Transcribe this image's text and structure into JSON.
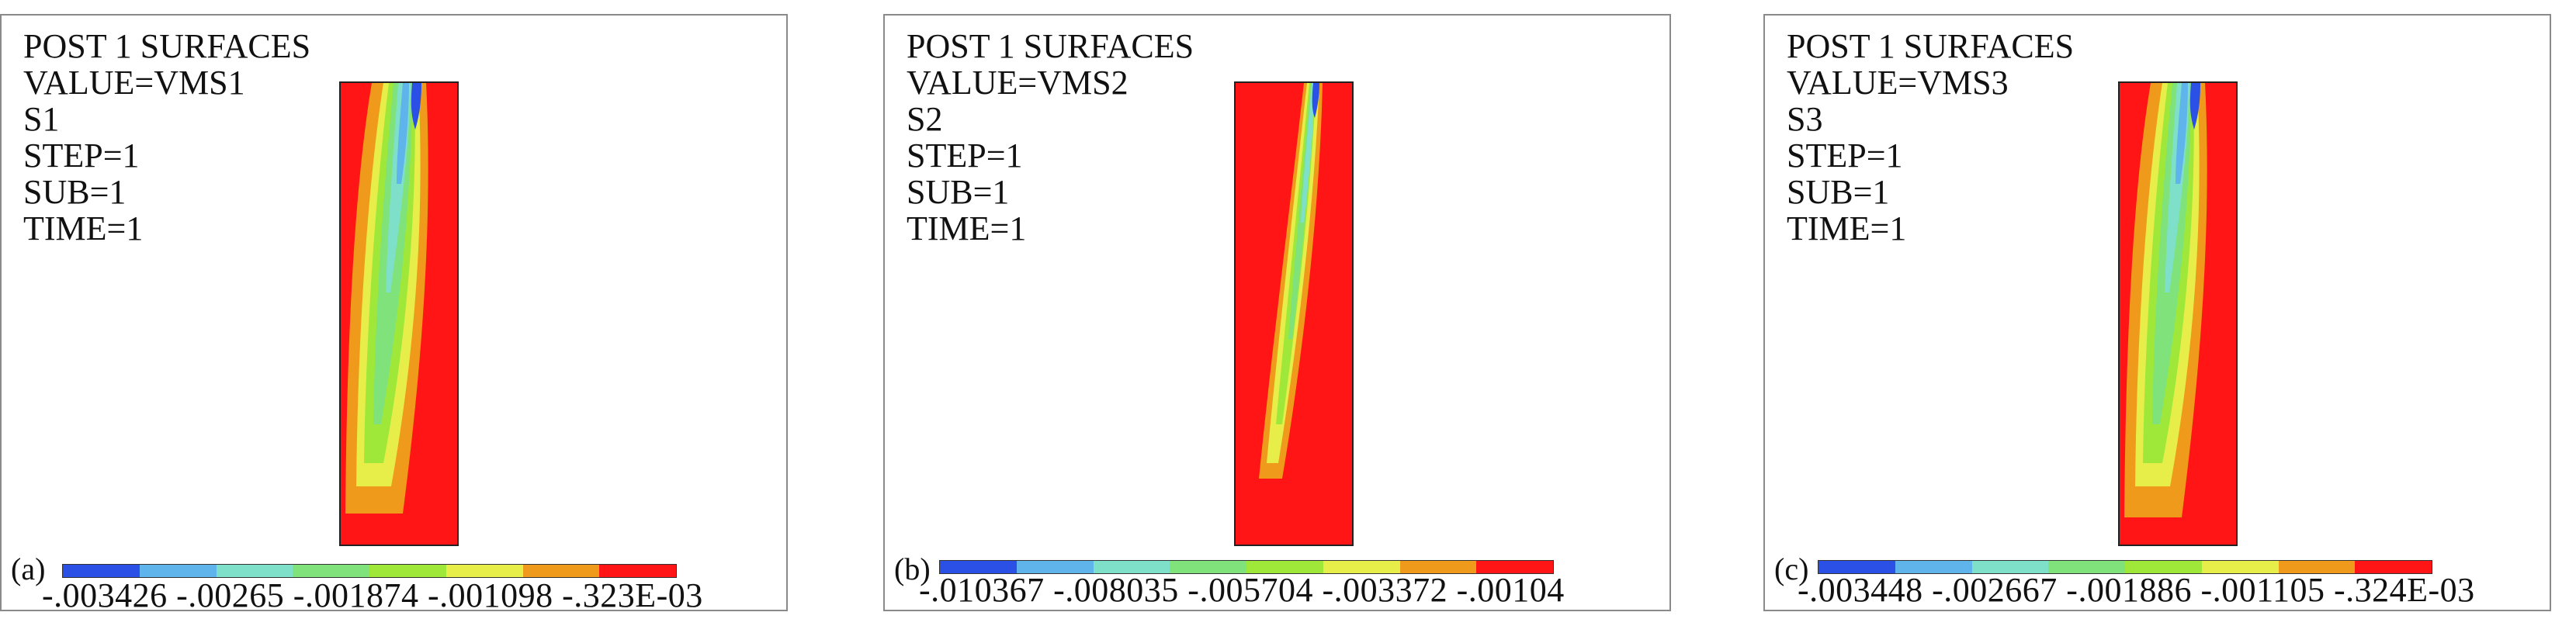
{
  "palette": [
    "#2a50e6",
    "#5fb4ec",
    "#7ee0c8",
    "#7fe27a",
    "#9fe83a",
    "#e7ee4a",
    "#f09a1c",
    "#ff1515"
  ],
  "panels": [
    {
      "label": "(a)",
      "info": [
        "POST 1 SURFACES",
        "VALUE=VMS1",
        "S1",
        "STEP=1",
        "SUB=1",
        "TIME=1"
      ],
      "legend_ticks": "-.003426 -.00265 -.001874 -.001098 -.323E-03"
    },
    {
      "label": "(b)",
      "info": [
        "POST 1 SURFACES",
        "VALUE=VMS2",
        "S2",
        "STEP=1",
        "SUB=1",
        "TIME=1"
      ],
      "legend_ticks": "-.010367 -.008035 -.005704 -.003372 -.00104"
    },
    {
      "label": "(c)",
      "info": [
        "POST 1 SURFACES",
        "VALUE=VMS3",
        "S3",
        "STEP=1",
        "SUB=1",
        "TIME=1"
      ],
      "legend_ticks": "-.003448 -.002667 -.001886 -.001105 -.324E-03"
    }
  ]
}
